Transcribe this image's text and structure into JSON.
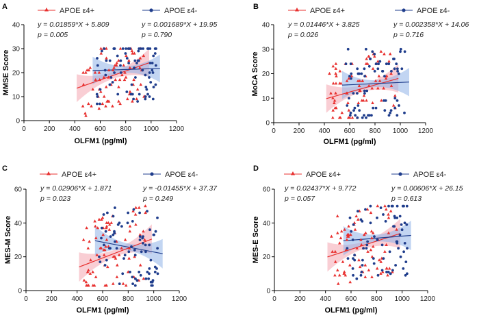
{
  "colors": {
    "e4_plus": "#e8302f",
    "e4_minus": "#1f3d8c",
    "e4_plus_band": "#f4a6b0",
    "e4_minus_band": "#8fb3e8"
  },
  "chart_data": [
    {
      "panel": "A",
      "type": "scatter",
      "xlabel": "OLFM1 (pg/ml)",
      "ylabel": "MMSE Score",
      "xlim": [
        0,
        1200
      ],
      "ylim": [
        0,
        40
      ],
      "xticks": [
        0,
        200,
        400,
        600,
        800,
        1000,
        1200
      ],
      "yticks": [
        0,
        10,
        20,
        30,
        40
      ],
      "series": [
        {
          "name": "APOE ε4+",
          "marker": "triangle",
          "equation": "y = 0.01859*X + 5.809",
          "p_value": "p = 0.005",
          "slope": 0.01859,
          "intercept": 5.809,
          "x_range": [
            415,
            985
          ]
        },
        {
          "name": "APOE ε4-",
          "marker": "circle",
          "equation": "y = 0.001689*X + 19.95",
          "p_value": "p = 0.790",
          "slope": 0.001689,
          "intercept": 19.95,
          "x_range": [
            540,
            1070
          ]
        }
      ]
    },
    {
      "panel": "B",
      "type": "scatter",
      "xlabel": "OLFM1 (pg/ml)",
      "ylabel": "MoCA Score",
      "xlim": [
        0,
        1200
      ],
      "ylim": [
        0,
        40
      ],
      "xticks": [
        0,
        200,
        400,
        600,
        800,
        1000,
        1200
      ],
      "yticks": [
        0,
        10,
        20,
        30,
        40
      ],
      "series": [
        {
          "name": "APOE ε4+",
          "marker": "triangle",
          "equation": "y = 0.01446*X + 3.825",
          "p_value": "p = 0.026",
          "slope": 0.01446,
          "intercept": 3.825,
          "x_range": [
            415,
            985
          ]
        },
        {
          "name": "APOE ε4-",
          "marker": "circle",
          "equation": "y = 0.002358*X + 14.06",
          "p_value": "p = 0.716",
          "slope": 0.002358,
          "intercept": 14.06,
          "x_range": [
            540,
            1070
          ]
        }
      ]
    },
    {
      "panel": "C",
      "type": "scatter",
      "xlabel": "OLFM1 (pg/ml)",
      "ylabel": "MES-M Score",
      "xlim": [
        0,
        1200
      ],
      "ylim": [
        0,
        60
      ],
      "xticks": [
        0,
        200,
        400,
        600,
        800,
        1000,
        1200
      ],
      "yticks": [
        0,
        20,
        40,
        60
      ],
      "series": [
        {
          "name": "APOE ε4+",
          "marker": "triangle",
          "equation": "y = 0.02906*X + 1.871",
          "p_value": "p = 0.023",
          "slope": 0.02906,
          "intercept": 1.871,
          "x_range": [
            415,
            985
          ]
        },
        {
          "name": "APOE ε4-",
          "marker": "circle",
          "equation": "y = -0.01455*X + 37.37",
          "p_value": "p = 0.249",
          "slope": -0.01455,
          "intercept": 37.37,
          "x_range": [
            540,
            1070
          ]
        }
      ]
    },
    {
      "panel": "D",
      "type": "scatter",
      "xlabel": "OLFM1 (pg/ml)",
      "ylabel": "MES-E Score",
      "xlim": [
        0,
        1200
      ],
      "ylim": [
        0,
        60
      ],
      "xticks": [
        0,
        200,
        400,
        600,
        800,
        1000,
        1200
      ],
      "yticks": [
        0,
        20,
        40,
        60
      ],
      "series": [
        {
          "name": "APOE ε4+",
          "marker": "triangle",
          "equation": "y = 0.02437*X + 9.772",
          "p_value": "p = 0.057",
          "slope": 0.02437,
          "intercept": 9.772,
          "x_range": [
            415,
            985
          ]
        },
        {
          "name": "APOE ε4-",
          "marker": "circle",
          "equation": "y = 0.00606*X + 26.15",
          "p_value": "p = 0.613",
          "slope": 0.00606,
          "intercept": 26.15,
          "x_range": [
            540,
            1070
          ]
        }
      ]
    }
  ]
}
